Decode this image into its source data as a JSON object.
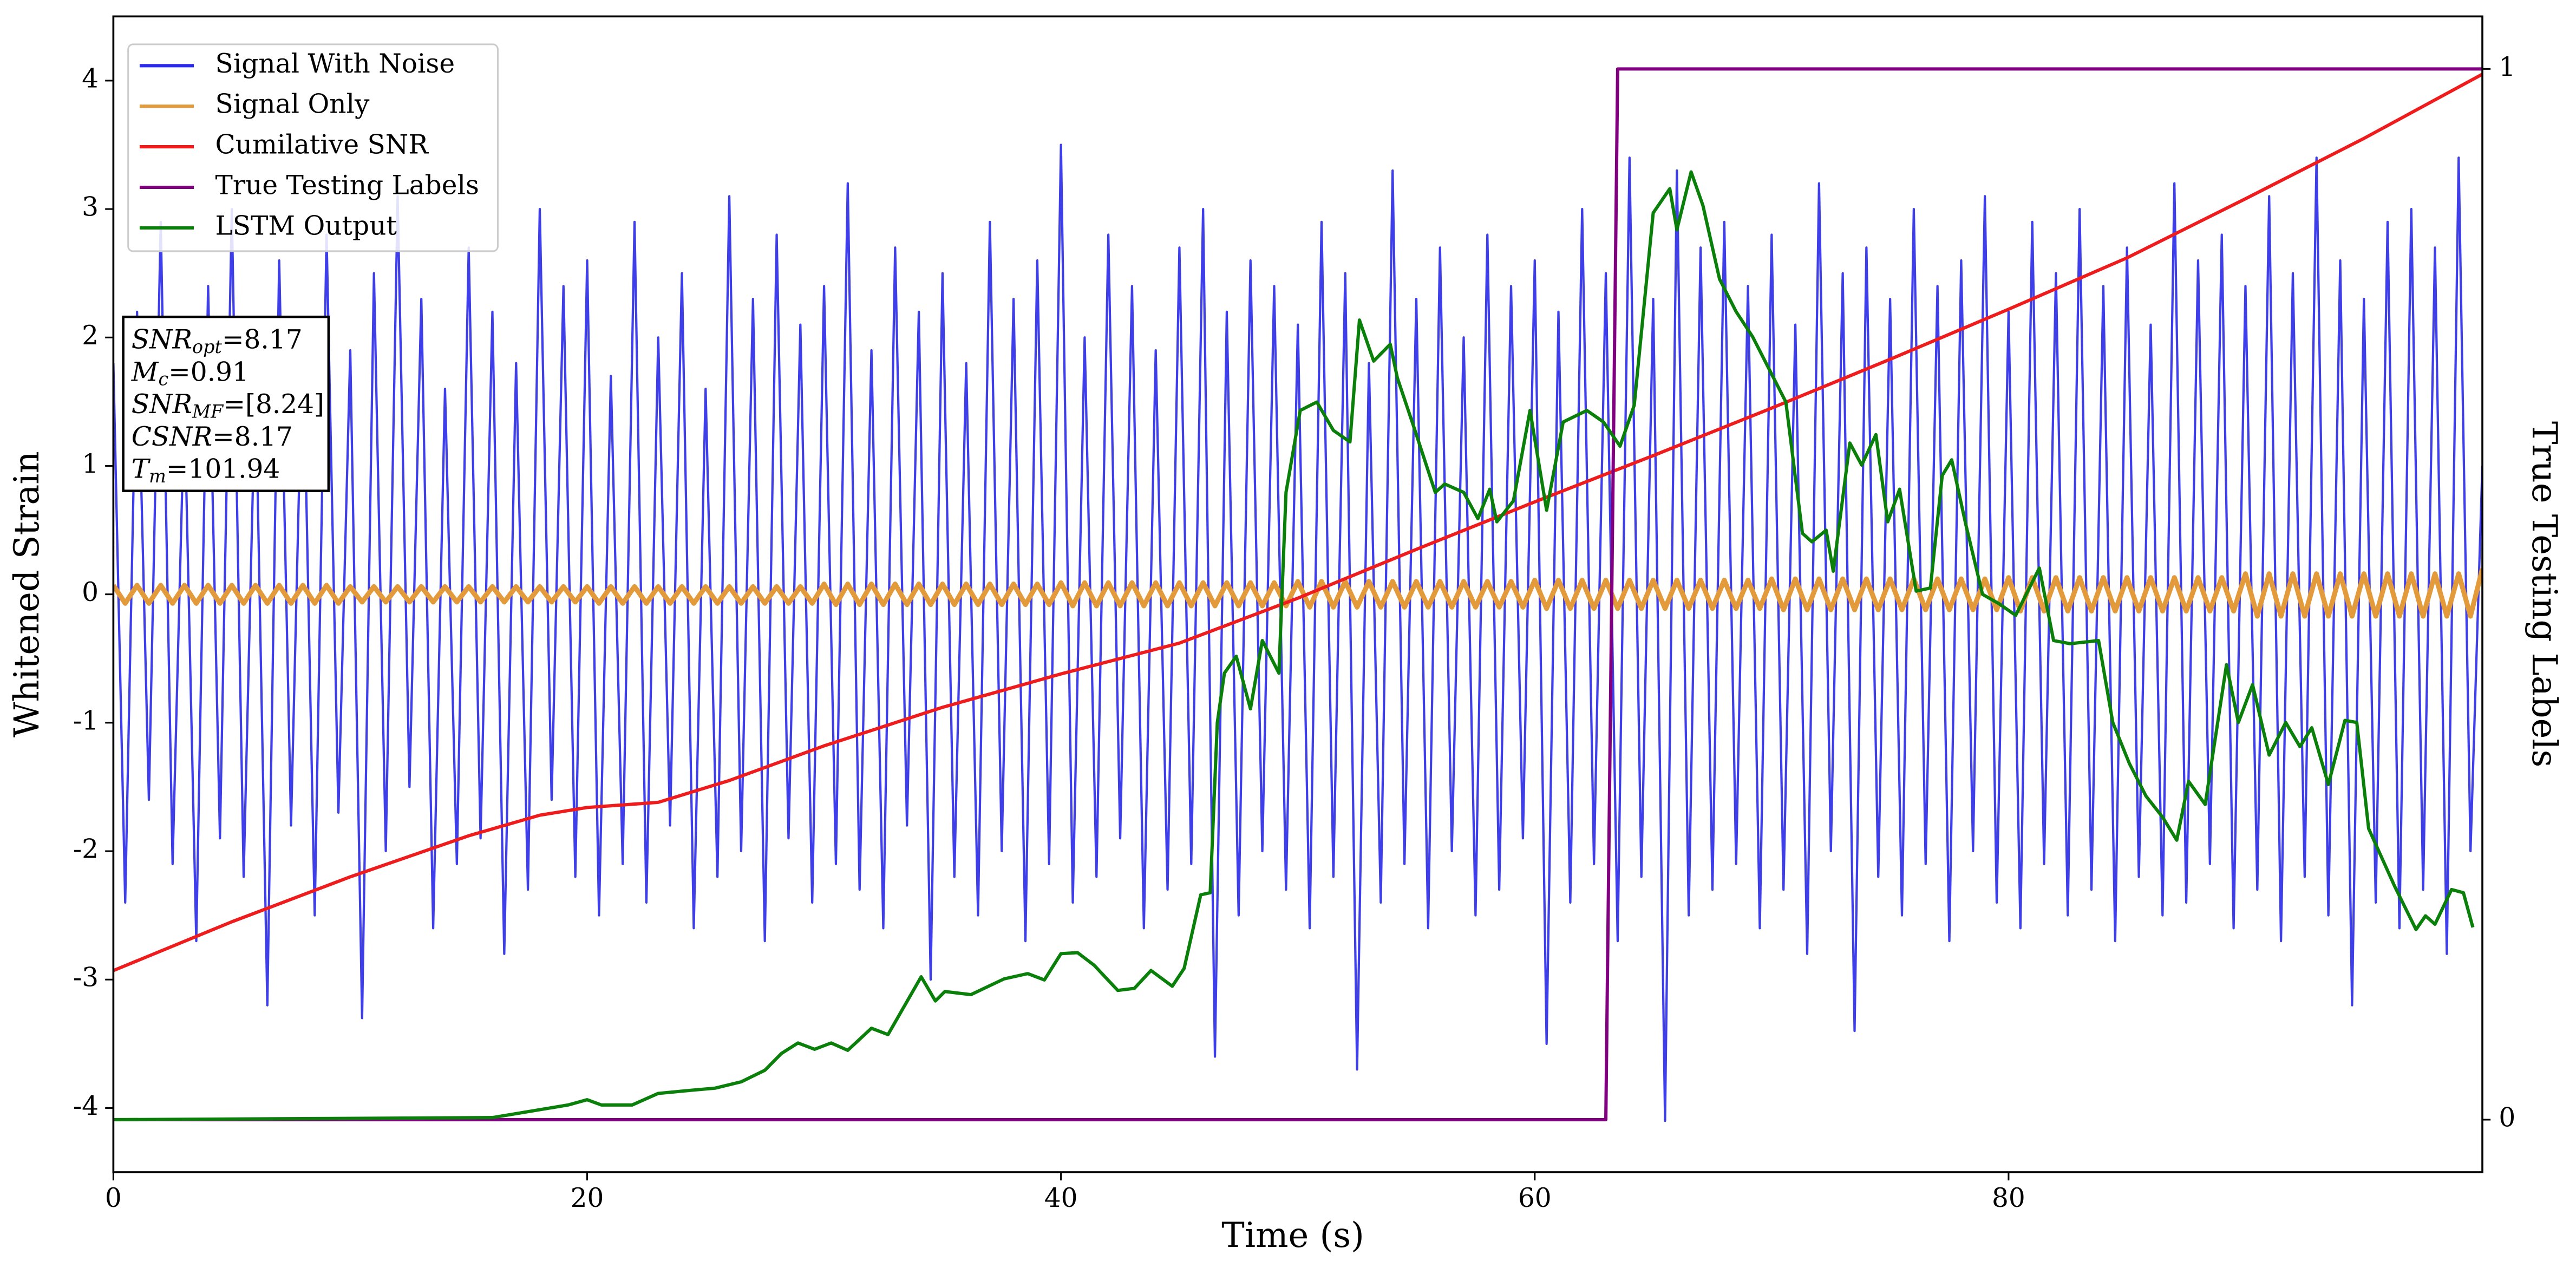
{
  "chart_data": {
    "type": "line",
    "xlabel": "Time (s)",
    "ylabel": "Whitened Strain",
    "y2label": "True Testing Labels",
    "xlim": [
      0,
      100
    ],
    "ylim": [
      -4.5,
      4.5
    ],
    "y2lim": [
      -0.05,
      1.05
    ],
    "xticks": [
      0,
      20,
      40,
      60,
      80
    ],
    "yticks": [
      -4,
      -3,
      -2,
      -1,
      0,
      1,
      2,
      3,
      4
    ],
    "y2ticks": [
      0,
      1
    ],
    "legend": "upper left",
    "x": [
      0,
      0.5,
      1,
      1.5,
      2,
      2.5,
      3,
      3.5,
      4,
      4.5,
      5,
      5.5,
      6,
      6.5,
      7,
      7.5,
      8,
      8.5,
      9,
      9.5,
      10,
      10.5,
      11,
      11.5,
      12,
      12.5,
      13,
      13.5,
      14,
      14.5,
      15,
      15.5,
      16,
      16.5,
      17,
      17.5,
      18,
      18.5,
      19,
      19.5,
      20,
      20.5,
      21,
      21.5,
      22,
      22.5,
      23,
      23.5,
      24,
      24.5,
      25,
      25.5,
      26,
      26.5,
      27,
      27.5,
      28,
      28.5,
      29,
      29.5,
      30,
      30.5,
      31,
      31.5,
      32,
      32.5,
      33,
      33.5,
      34,
      34.5,
      35,
      35.5,
      36,
      36.5,
      37,
      37.5,
      38,
      38.5,
      39,
      39.5,
      40,
      40.5,
      41,
      41.5,
      42,
      42.5,
      43,
      43.5,
      44,
      44.5,
      45,
      45.5,
      46,
      46.5,
      47,
      47.5,
      48,
      48.5,
      49,
      49.5,
      50,
      50.5,
      51,
      51.5,
      52,
      52.5,
      53,
      53.5,
      54,
      54.5,
      55,
      55.5,
      56,
      56.5,
      57,
      57.5,
      58,
      58.5,
      59,
      59.5,
      60,
      60.5,
      61,
      61.5,
      62,
      62.5,
      63,
      63.5,
      64,
      64.5,
      65,
      65.5,
      66,
      66.5,
      67,
      67.5,
      68,
      68.5,
      69,
      69.5,
      70,
      70.5,
      71,
      71.5,
      72,
      72.5,
      73,
      73.5,
      74,
      74.5,
      75,
      75.5,
      76,
      76.5,
      77,
      77.5,
      78,
      78.5,
      79,
      79.5,
      80,
      80.5,
      81,
      81.5,
      82,
      82.5,
      83,
      83.5,
      84,
      84.5,
      85,
      85.5,
      86,
      86.5,
      87,
      87.5,
      88,
      88.5,
      89,
      89.5,
      90,
      90.5,
      91,
      91.5,
      92,
      92.5,
      93,
      93.5,
      94,
      94.5,
      95,
      95.5,
      96,
      96.5,
      97,
      97.5,
      98,
      98.5,
      99,
      99.5,
      100
    ],
    "series": [
      {
        "name": "Signal With Noise",
        "color": "#2a2ae8",
        "values": [
          1.8,
          -2.4,
          2.2,
          -1.6,
          2.9,
          -2.1,
          1.5,
          -2.7,
          2.4,
          -1.9,
          3.0,
          -2.2,
          1.7,
          -3.2,
          2.6,
          -1.8,
          2.1,
          -2.5,
          2.8,
          -1.7,
          1.9,
          -3.3,
          2.5,
          -2.0,
          3.1,
          -1.5,
          2.3,
          -2.6,
          1.6,
          -2.1,
          2.7,
          -1.9,
          2.2,
          -2.8,
          1.8,
          -2.3,
          3.0,
          -1.6,
          2.4,
          -2.2,
          2.6,
          -2.5,
          1.7,
          -2.1,
          2.9,
          -2.4,
          2.0,
          -1.8,
          2.5,
          -2.6,
          1.6,
          -2.2,
          3.1,
          -2.0,
          2.3,
          -2.7,
          2.8,
          -1.9,
          2.1,
          -2.4,
          2.4,
          -2.1,
          3.2,
          -2.3,
          1.9,
          -2.6,
          2.7,
          -1.8,
          2.2,
          -3.0,
          2.5,
          -2.2,
          1.8,
          -2.5,
          2.9,
          -2.0,
          2.3,
          -2.7,
          2.6,
          -2.1,
          3.5,
          -2.4,
          2.0,
          -2.2,
          2.8,
          -1.9,
          2.4,
          -2.6,
          1.9,
          -2.3,
          2.7,
          -2.1,
          3.0,
          -3.6,
          2.2,
          -2.5,
          2.6,
          -2.0,
          2.4,
          -2.3,
          2.1,
          -2.6,
          2.9,
          -2.2,
          2.5,
          -3.7,
          1.8,
          -2.4,
          3.3,
          -2.1,
          2.3,
          -2.6,
          2.7,
          -2.0,
          2.0,
          -2.5,
          2.8,
          -2.3,
          2.4,
          -1.9,
          2.6,
          -3.5,
          2.2,
          -2.4,
          3.0,
          -2.1,
          2.5,
          -2.7,
          3.4,
          -2.2,
          2.3,
          -4.1,
          3.3,
          -2.5,
          2.7,
          -2.3,
          2.9,
          -2.1,
          2.4,
          -2.6,
          2.8,
          -2.3,
          2.1,
          -2.8,
          3.2,
          -2.0,
          2.5,
          -3.4,
          2.7,
          -2.2,
          2.3,
          -2.5,
          3.0,
          -2.1,
          2.4,
          -2.7,
          2.6,
          -2.0,
          3.1,
          -2.4,
          2.2,
          -2.6,
          2.9,
          -2.1,
          2.5,
          -2.5,
          3.0,
          -2.3,
          2.4,
          -2.7,
          2.7,
          -2.2,
          2.1,
          -2.5,
          3.2,
          -2.4,
          2.6,
          -2.1,
          2.8,
          -2.6,
          2.4,
          -2.3,
          3.1,
          -2.7,
          2.5,
          -2.2,
          3.4,
          -2.5,
          2.6,
          -3.2,
          2.3,
          -2.4,
          2.9,
          -2.6,
          3.0,
          -2.3,
          2.7,
          -2.8,
          3.4,
          -2.0,
          1.0
        ]
      },
      {
        "name": "Signal Only",
        "color": "#e29a3a",
        "values": [
          0.07,
          -0.07,
          0.07,
          -0.07,
          0.07,
          -0.07,
          0.07,
          -0.07,
          0.07,
          -0.07,
          0.07,
          -0.07,
          0.07,
          -0.07,
          0.07,
          -0.07,
          0.07,
          -0.07,
          0.07,
          -0.07,
          0.06,
          -0.06,
          0.06,
          -0.06,
          0.06,
          -0.06,
          0.06,
          -0.06,
          0.06,
          -0.06,
          0.06,
          -0.06,
          0.06,
          -0.06,
          0.06,
          -0.06,
          0.06,
          -0.06,
          0.06,
          -0.06,
          0.06,
          -0.07,
          0.06,
          -0.07,
          0.06,
          -0.07,
          0.06,
          -0.07,
          0.06,
          -0.07,
          0.06,
          -0.07,
          0.06,
          -0.07,
          0.06,
          -0.07,
          0.06,
          -0.07,
          0.06,
          -0.07,
          0.08,
          -0.08,
          0.08,
          -0.08,
          0.08,
          -0.08,
          0.08,
          -0.08,
          0.08,
          -0.08,
          0.08,
          -0.08,
          0.08,
          -0.08,
          0.08,
          -0.08,
          0.08,
          -0.08,
          0.08,
          -0.08,
          0.09,
          -0.09,
          0.09,
          -0.09,
          0.09,
          -0.09,
          0.09,
          -0.09,
          0.09,
          -0.09,
          0.09,
          -0.09,
          0.09,
          -0.09,
          0.09,
          -0.09,
          0.09,
          -0.09,
          0.09,
          -0.09,
          0.1,
          -0.1,
          0.1,
          -0.1,
          0.1,
          -0.1,
          0.1,
          -0.1,
          0.1,
          -0.1,
          0.1,
          -0.1,
          0.1,
          -0.1,
          0.1,
          -0.1,
          0.1,
          -0.1,
          0.1,
          -0.1,
          0.11,
          -0.11,
          0.11,
          -0.11,
          0.11,
          -0.11,
          0.11,
          -0.11,
          0.11,
          -0.11,
          0.11,
          -0.11,
          0.11,
          -0.11,
          0.11,
          -0.11,
          0.11,
          -0.11,
          0.11,
          -0.11,
          0.12,
          -0.12,
          0.12,
          -0.12,
          0.12,
          -0.12,
          0.12,
          -0.12,
          0.12,
          -0.12,
          0.12,
          -0.12,
          0.12,
          -0.12,
          0.12,
          -0.12,
          0.12,
          -0.12,
          0.12,
          -0.12,
          0.13,
          -0.13,
          0.13,
          -0.13,
          0.13,
          -0.13,
          0.13,
          -0.13,
          0.13,
          -0.13,
          0.13,
          -0.13,
          0.13,
          -0.13,
          0.13,
          -0.13,
          0.13,
          -0.13,
          0.13,
          -0.13,
          0.16,
          -0.17,
          0.16,
          -0.17,
          0.16,
          -0.17,
          0.16,
          -0.17,
          0.16,
          -0.17,
          0.16,
          -0.17,
          0.16,
          -0.17,
          0.16,
          -0.17,
          0.16,
          -0.17,
          0.16,
          -0.17,
          0.2
        ]
      },
      {
        "name": "Cumilative SNR",
        "color": "#ee1c1c",
        "x": [
          0,
          5,
          10,
          15,
          18,
          20,
          23,
          26,
          30,
          35,
          40,
          45,
          50,
          55,
          60,
          65,
          70,
          75,
          80,
          85,
          90,
          95,
          100
        ],
        "values": [
          -2.93,
          -2.55,
          -2.2,
          -1.88,
          -1.72,
          -1.66,
          -1.62,
          -1.45,
          -1.18,
          -0.88,
          -0.62,
          -0.38,
          -0.03,
          0.35,
          0.72,
          1.08,
          1.45,
          1.83,
          2.22,
          2.62,
          3.08,
          3.55,
          4.05
        ]
      },
      {
        "name": "True Testing Labels",
        "color": "#800080",
        "axis": "y2",
        "x": [
          0,
          63,
          63.5,
          100
        ],
        "values": [
          0,
          0,
          1,
          1
        ]
      },
      {
        "name": "LSTM Output",
        "color": "#0a800a",
        "axis": "y2",
        "x": [
          0,
          16.0,
          19.2,
          20.0,
          20.6,
          21.9,
          23.0,
          24.4,
          25.4,
          26.5,
          27.5,
          28.2,
          28.9,
          29.6,
          30.3,
          31.0,
          32.0,
          32.7,
          34.1,
          34.7,
          35.1,
          36.2,
          37.6,
          38.6,
          39.3,
          40.0,
          40.7,
          41.4,
          42.4,
          43.1,
          43.8,
          44.7,
          45.2,
          45.9,
          46.3,
          46.6,
          46.9,
          47.4,
          48.0,
          48.5,
          49.2,
          49.5,
          50.1,
          50.8,
          51.5,
          52.2,
          52.6,
          53.2,
          53.9,
          54.2,
          54.9,
          55.8,
          56.2,
          57.0,
          57.6,
          58.1,
          58.4,
          59.1,
          59.8,
          60.5,
          61.2,
          62.2,
          62.9,
          63.6,
          64.2,
          65.0,
          65.7,
          66.0,
          66.6,
          67.1,
          67.8,
          68.5,
          69.2,
          69.9,
          70.6,
          71.3,
          71.7,
          72.3,
          72.6,
          73.3,
          73.8,
          74.4,
          74.9,
          75.4,
          76.1,
          76.7,
          77.2,
          77.6,
          78.2,
          78.9,
          79.6,
          80.3,
          81.3,
          81.9,
          82.6,
          83.8,
          84.4,
          85.1,
          85.8,
          86.5,
          87.1,
          87.6,
          88.3,
          89.2,
          89.7,
          90.3,
          91.0,
          91.7,
          92.3,
          92.8,
          93.5,
          94.2,
          94.7,
          95.2,
          96.3,
          97.2,
          97.6,
          98.0,
          98.7,
          99.2,
          99.6
        ],
        "values": [
          0,
          0.002,
          0.014,
          0.019,
          0.014,
          0.014,
          0.025,
          0.028,
          0.03,
          0.036,
          0.047,
          0.063,
          0.073,
          0.067,
          0.073,
          0.066,
          0.087,
          0.081,
          0.136,
          0.113,
          0.122,
          0.119,
          0.134,
          0.139,
          0.133,
          0.158,
          0.159,
          0.147,
          0.123,
          0.125,
          0.142,
          0.127,
          0.144,
          0.214,
          0.216,
          0.378,
          0.425,
          0.441,
          0.391,
          0.456,
          0.425,
          0.597,
          0.675,
          0.683,
          0.656,
          0.645,
          0.761,
          0.722,
          0.738,
          0.706,
          0.659,
          0.597,
          0.605,
          0.597,
          0.572,
          0.6,
          0.569,
          0.589,
          0.675,
          0.58,
          0.664,
          0.675,
          0.664,
          0.641,
          0.68,
          0.863,
          0.886,
          0.847,
          0.902,
          0.87,
          0.8,
          0.769,
          0.745,
          0.714,
          0.683,
          0.558,
          0.55,
          0.561,
          0.522,
          0.644,
          0.623,
          0.652,
          0.569,
          0.6,
          0.503,
          0.506,
          0.613,
          0.628,
          0.566,
          0.5,
          0.491,
          0.48,
          0.525,
          0.456,
          0.453,
          0.456,
          0.378,
          0.339,
          0.308,
          0.288,
          0.266,
          0.322,
          0.3,
          0.433,
          0.378,
          0.414,
          0.347,
          0.378,
          0.355,
          0.373,
          0.319,
          0.38,
          0.378,
          0.277,
          0.222,
          0.181,
          0.194,
          0.186,
          0.219,
          0.216,
          0.183
        ]
      }
    ],
    "annotations": [
      {
        "name": "SNR",
        "sub": "opt",
        "text": "=8.17"
      },
      {
        "name": "M",
        "sub": "c",
        "text": "=0.91"
      },
      {
        "name": "SNR",
        "sub": "MF",
        "text": "=[8.24]"
      },
      {
        "name": "CSNR",
        "text": "=8.17"
      },
      {
        "name": "T",
        "sub": "m",
        "text": "=101.94"
      }
    ]
  }
}
